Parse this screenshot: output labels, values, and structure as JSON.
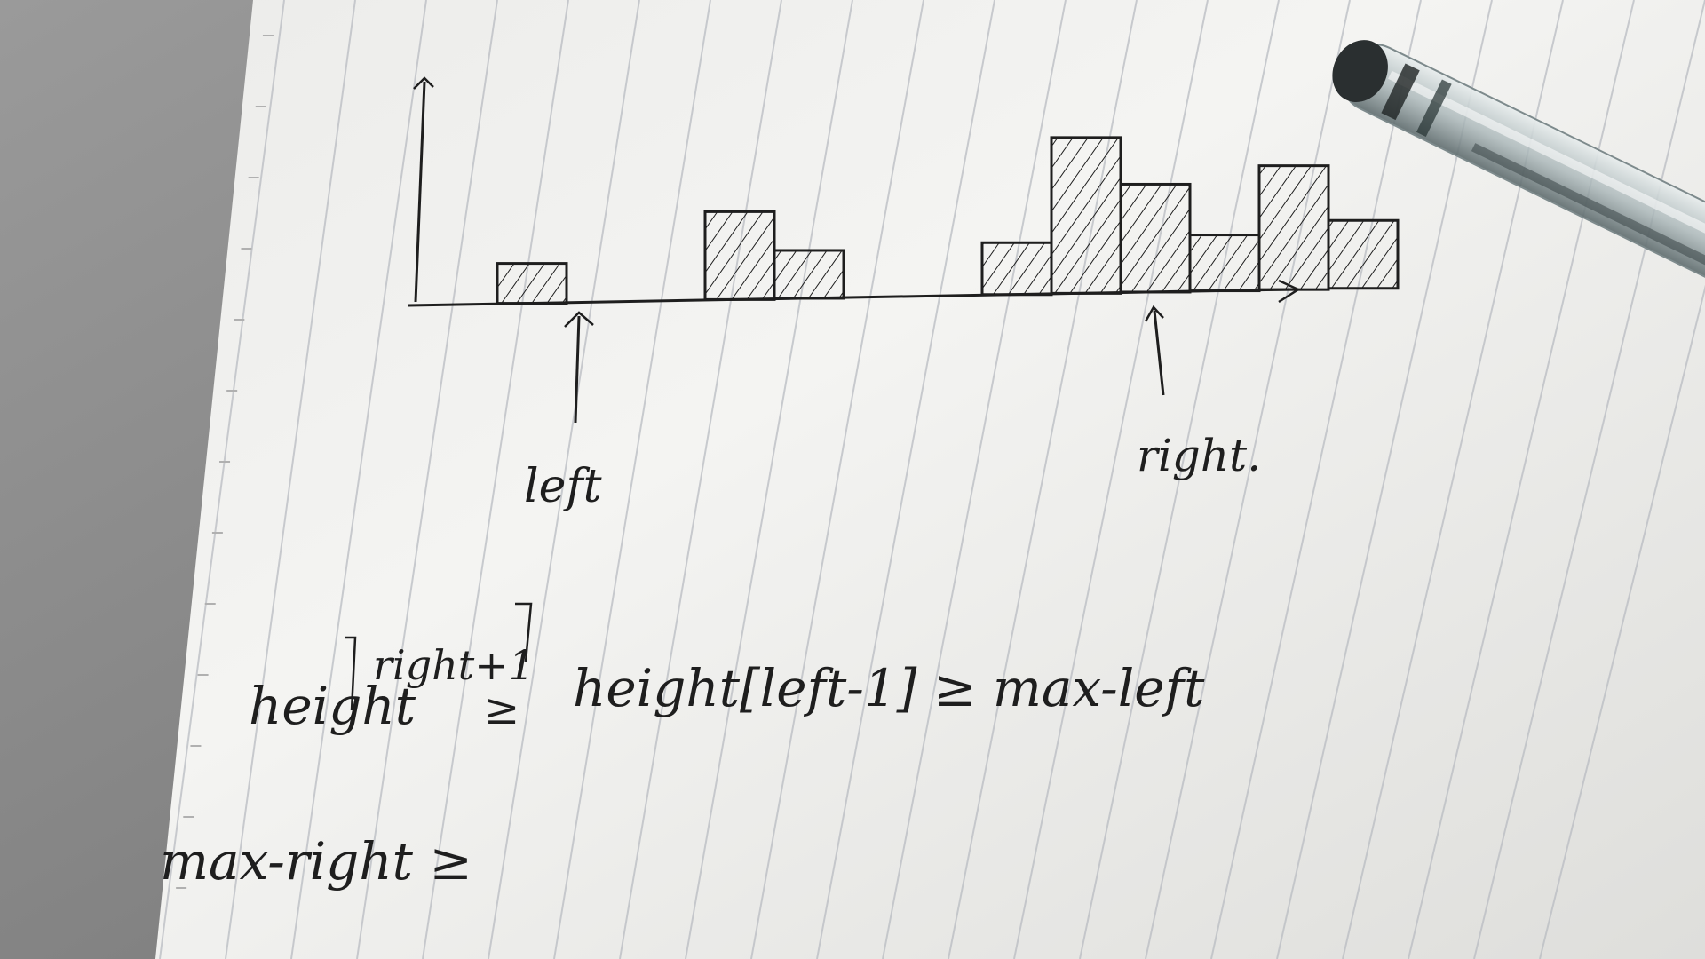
{
  "sketch": {
    "bar_heights": [
      0,
      1,
      0,
      0,
      2.2,
      1.2,
      0,
      0,
      1.3,
      3.9,
      2.7,
      1.4,
      3.1,
      1.7
    ],
    "left_label": "left",
    "right_label": "right.",
    "left_points_to_index": 1.5,
    "right_points_to_index": 11.5,
    "equation_line_1": {
      "lhs_word": "height",
      "lhs_index": "right+1",
      "relation": "≥",
      "rhs": "height[left-1] ≥ max-left"
    },
    "equation_line_2": {
      "text": "max-right ≥"
    }
  },
  "colors": {
    "ink": "#1e1e1e",
    "paper_light": "#f3f3f1",
    "paper_shadow": "#d9d9d6",
    "rule_line": "#b9bcc2",
    "background_shadow": "#7c7c7c"
  },
  "objects": {
    "pen": "transparent-ballpoint-pen"
  }
}
